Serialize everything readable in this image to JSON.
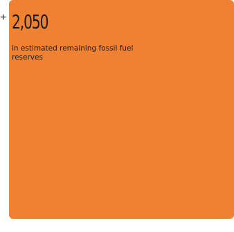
{
  "stat": {
    "prefix": "+",
    "value": "2,050",
    "caption": "in estimated remaining fossil fuel reserves"
  },
  "colors": {
    "card_background": "#ef8133",
    "text": "#1a1a1a"
  }
}
